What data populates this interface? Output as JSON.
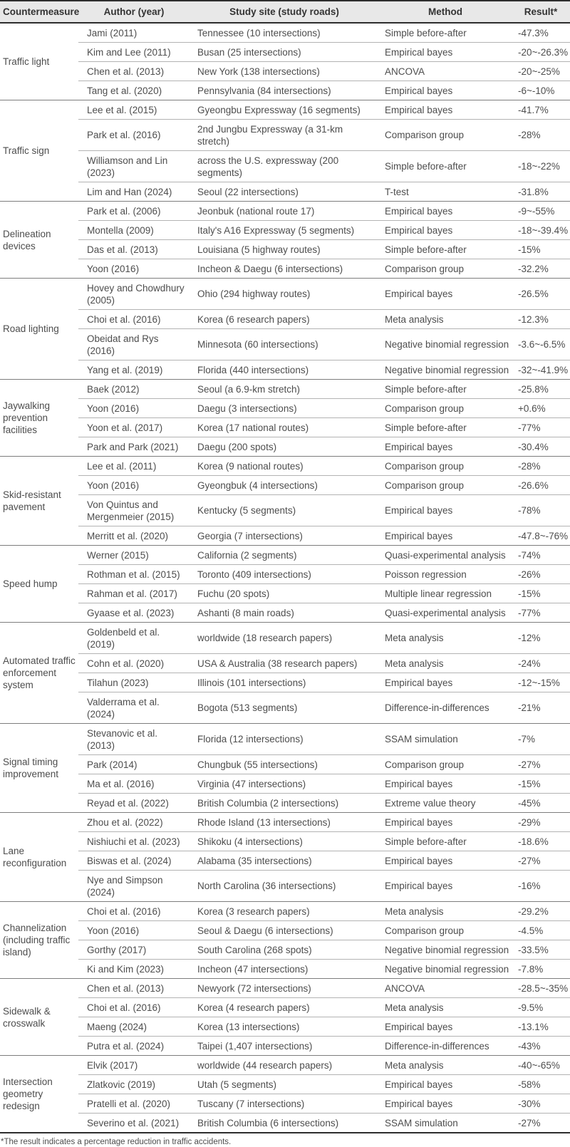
{
  "table": {
    "headers": [
      "Countermeasure",
      "Author (year)",
      "Study site (study roads)",
      "Method",
      "Result*"
    ],
    "groups": [
      {
        "countermeasure": "Traffic light",
        "rows": [
          [
            "Jami (2011)",
            "Tennessee (10 intersections)",
            "Simple before-after",
            "-47.3%"
          ],
          [
            "Kim and Lee (2011)",
            "Busan (25 intersections)",
            "Empirical bayes",
            "-20~-26.3%"
          ],
          [
            "Chen et al. (2013)",
            "New York (138 intersections)",
            "ANCOVA",
            "-20~-25%"
          ],
          [
            "Tang et al. (2020)",
            "Pennsylvania (84 intersections)",
            "Empirical bayes",
            "-6~-10%"
          ]
        ]
      },
      {
        "countermeasure": "Traffic sign",
        "rows": [
          [
            "Lee et al. (2015)",
            "Gyeongbu Expressway (16 segments)",
            "Empirical bayes",
            "-41.7%"
          ],
          [
            "Park et al. (2016)",
            "2nd Jungbu Expressway (a 31-km stretch)",
            "Comparison group",
            "-28%"
          ],
          [
            "Williamson and Lin (2023)",
            "across the U.S. expressway (200 segments)",
            "Simple before-after",
            "-18~-22%"
          ],
          [
            "Lim and Han (2024)",
            "Seoul (22 intersections)",
            "T-test",
            "-31.8%"
          ]
        ]
      },
      {
        "countermeasure": "Delineation devices",
        "rows": [
          [
            "Park et al. (2006)",
            "Jeonbuk (national route 17)",
            "Empirical bayes",
            "-9~-55%"
          ],
          [
            "Montella (2009)",
            "Italy's A16 Expressway (5 segments)",
            "Empirical bayes",
            "-18~-39.4%"
          ],
          [
            "Das et al. (2013)",
            "Louisiana (5 highway routes)",
            "Simple before-after",
            "-15%"
          ],
          [
            "Yoon (2016)",
            "Incheon & Daegu (6 intersections)",
            "Comparison group",
            "-32.2%"
          ]
        ]
      },
      {
        "countermeasure": "Road lighting",
        "rows": [
          [
            "Hovey and Chowdhury (2005)",
            "Ohio (294 highway routes)",
            "Empirical bayes",
            "-26.5%"
          ],
          [
            "Choi et al. (2016)",
            "Korea (6 research papers)",
            "Meta analysis",
            "-12.3%"
          ],
          [
            "Obeidat and Rys (2016)",
            "Minnesota (60 intersections)",
            "Negative binomial regression",
            "-3.6~-6.5%"
          ],
          [
            "Yang et al. (2019)",
            "Florida (440 intersections)",
            "Negative binomial regression",
            "-32~-41.9%"
          ]
        ]
      },
      {
        "countermeasure": "Jaywalking prevention facilities",
        "rows": [
          [
            "Baek (2012)",
            "Seoul (a 6.9-km stretch)",
            "Simple before-after",
            "-25.8%"
          ],
          [
            "Yoon (2016)",
            "Daegu (3 intersections)",
            "Comparison group",
            "+0.6%"
          ],
          [
            "Yoon et al. (2017)",
            "Korea (17 national routes)",
            "Simple before-after",
            "-77%"
          ],
          [
            "Park and Park (2021)",
            "Daegu (200 spots)",
            "Empirical bayes",
            "-30.4%"
          ]
        ]
      },
      {
        "countermeasure": "Skid-resistant pavement",
        "rows": [
          [
            "Lee et al. (2011)",
            "Korea (9 national routes)",
            "Comparison group",
            "-28%"
          ],
          [
            "Yoon (2016)",
            "Gyeongbuk (4 intersections)",
            "Comparison group",
            "-26.6%"
          ],
          [
            "Von Quintus and Mergenmeier (2015)",
            "Kentucky (5 segments)",
            "Empirical bayes",
            "-78%"
          ],
          [
            "Merritt et al. (2020)",
            "Georgia (7 intersections)",
            "Empirical bayes",
            "-47.8~-76%"
          ]
        ]
      },
      {
        "countermeasure": "Speed hump",
        "rows": [
          [
            "Werner (2015)",
            "California (2 segments)",
            "Quasi-experimental analysis",
            "-74%"
          ],
          [
            "Rothman et al. (2015)",
            "Toronto (409 intersections)",
            "Poisson regression",
            "-26%"
          ],
          [
            "Rahman et al. (2017)",
            "Fuchu (20 spots)",
            "Multiple linear regression",
            "-15%"
          ],
          [
            "Gyaase et al. (2023)",
            "Ashanti (8 main roads)",
            "Quasi-experimental analysis",
            "-77%"
          ]
        ]
      },
      {
        "countermeasure": "Automated traffic enforcement system",
        "rows": [
          [
            "Goldenbeld et al. (2019)",
            "worldwide (18 research papers)",
            "Meta analysis",
            "-12%"
          ],
          [
            "Cohn et al. (2020)",
            "USA & Australia (38 research papers)",
            "Meta analysis",
            "-24%"
          ],
          [
            "Tilahun (2023)",
            "Illinois (101 intersections)",
            "Empirical bayes",
            "-12~-15%"
          ],
          [
            "Valderrama et al. (2024)",
            "Bogota (513 segments)",
            "Difference-in-differences",
            "-21%"
          ]
        ]
      },
      {
        "countermeasure": "Signal timing improvement",
        "rows": [
          [
            "Stevanovic et al. (2013)",
            "Florida (12 intersections)",
            "SSAM simulation",
            "-7%"
          ],
          [
            "Park (2014)",
            "Chungbuk (55 intersections)",
            "Comparison group",
            "-27%"
          ],
          [
            "Ma et al. (2016)",
            "Virginia (47 intersections)",
            "Empirical bayes",
            "-15%"
          ],
          [
            "Reyad et al. (2022)",
            "British Columbia (2 intersections)",
            "Extreme value theory",
            "-45%"
          ]
        ]
      },
      {
        "countermeasure": "Lane reconfiguration",
        "rows": [
          [
            "Zhou et al. (2022)",
            "Rhode Island (13 intersections)",
            "Empirical bayes",
            "-29%"
          ],
          [
            "Nishiuchi et al. (2023)",
            "Shikoku (4 intersections)",
            "Simple before-after",
            "-18.6%"
          ],
          [
            "Biswas et al. (2024)",
            "Alabama (35 intersections)",
            "Empirical bayes",
            "-27%"
          ],
          [
            "Nye and Simpson (2024)",
            "North Carolina (36 intersections)",
            "Empirical bayes",
            "-16%"
          ]
        ]
      },
      {
        "countermeasure": "Channelization (including traffic island)",
        "rows": [
          [
            "Choi et al. (2016)",
            "Korea (3 research papers)",
            "Meta analysis",
            "-29.2%"
          ],
          [
            "Yoon (2016)",
            "Seoul & Daegu (6 intersections)",
            "Comparison group",
            "-4.5%"
          ],
          [
            "Gorthy (2017)",
            "South Carolina (268 spots)",
            "Negative binomial regression",
            "-33.5%"
          ],
          [
            "Ki and Kim (2023)",
            "Incheon (47 intersections)",
            "Negative binomial regression",
            "-7.8%"
          ]
        ]
      },
      {
        "countermeasure": "Sidewalk & crosswalk",
        "rows": [
          [
            "Chen et al. (2013)",
            "Newyork (72 intersections)",
            "ANCOVA",
            "-28.5~-35%"
          ],
          [
            "Choi et al. (2016)",
            "Korea (4 research papers)",
            "Meta analysis",
            "-9.5%"
          ],
          [
            "Maeng (2024)",
            "Korea (13 intersections)",
            "Empirical bayes",
            "-13.1%"
          ],
          [
            "Putra et al. (2024)",
            "Taipei (1,407 intersections)",
            "Difference-in-differences",
            "-43%"
          ]
        ]
      },
      {
        "countermeasure": "Intersection geometry redesign",
        "rows": [
          [
            "Elvik (2017)",
            "worldwide (44 research papers)",
            "Meta analysis",
            "-40~-65%"
          ],
          [
            "Zlatkovic (2019)",
            "Utah (5 segments)",
            "Empirical bayes",
            "-58%"
          ],
          [
            "Pratelli et al. (2020)",
            "Tuscany (7 intersections)",
            "Empirical bayes",
            "-30%"
          ],
          [
            "Severino et al. (2021)",
            "British Columbia (6 intersections)",
            "SSAM simulation",
            "-27%"
          ]
        ]
      }
    ],
    "footnote": "*The result indicates a percentage reduction in traffic accidents."
  },
  "colors": {
    "header_background": "#e8e8e8",
    "header_text": "#333333",
    "body_text": "#4d4d4d",
    "group_divider": "#7d7d7d",
    "row_divider": "#b3b3b3",
    "outer_border": "#2d2d2d"
  }
}
